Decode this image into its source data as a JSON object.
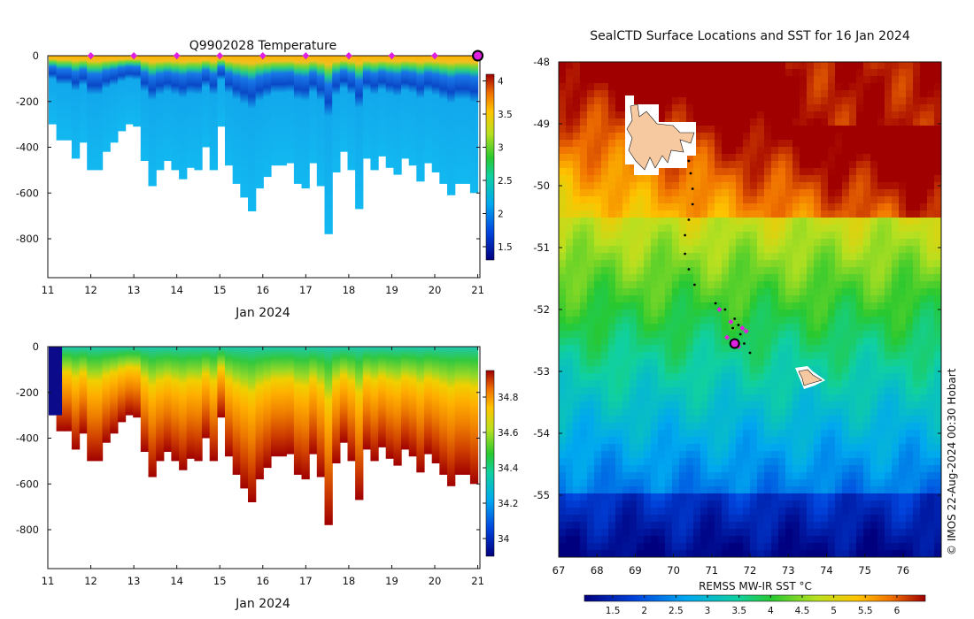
{
  "chart_data": [
    {
      "type": "heatmap",
      "title": "Q9902028  Temperature",
      "xlabel": "Jan 2024",
      "ylabel": "",
      "x_ticks": [
        "11",
        "12",
        "13",
        "14",
        "15",
        "16",
        "17",
        "18",
        "19",
        "20",
        "21"
      ],
      "x_range": [
        11,
        21.05
      ],
      "y_ticks": [
        "0",
        "-200",
        "-400",
        "-600",
        "-800"
      ],
      "y_range": [
        -970,
        0
      ],
      "profile_max_depth_m": [
        300,
        370,
        370,
        450,
        380,
        500,
        500,
        420,
        380,
        330,
        300,
        310,
        460,
        570,
        500,
        460,
        500,
        540,
        490,
        500,
        400,
        500,
        310,
        480,
        560,
        620,
        680,
        580,
        530,
        480,
        480,
        470,
        560,
        580,
        470,
        570,
        780,
        510,
        420,
        500,
        670,
        450,
        500,
        440,
        490,
        520,
        450,
        480,
        550,
        470,
        510,
        560,
        610,
        560,
        560,
        600
      ],
      "surface_positions_day": [
        12,
        13,
        14,
        15,
        16,
        17,
        18,
        19,
        20
      ],
      "current_day": 21,
      "colorbar": {
        "ticks": [
          "1.5",
          "2",
          "2.5",
          "3",
          "3.5",
          "4"
        ],
        "range": [
          1.3,
          4.1
        ]
      }
    },
    {
      "type": "heatmap",
      "title": "",
      "xlabel": "Jan 2024",
      "ylabel": "",
      "x_ticks": [
        "11",
        "12",
        "13",
        "14",
        "15",
        "16",
        "17",
        "18",
        "19",
        "20",
        "21"
      ],
      "x_range": [
        11,
        21.05
      ],
      "y_ticks": [
        "0",
        "-200",
        "-400",
        "-600",
        "-800"
      ],
      "y_range": [
        -970,
        0
      ],
      "profile_max_depth_m": [
        300,
        370,
        370,
        450,
        380,
        500,
        500,
        420,
        380,
        330,
        300,
        310,
        460,
        570,
        500,
        460,
        500,
        540,
        490,
        500,
        400,
        500,
        310,
        480,
        560,
        620,
        680,
        580,
        530,
        480,
        480,
        470,
        560,
        580,
        470,
        570,
        780,
        510,
        420,
        500,
        670,
        450,
        500,
        440,
        490,
        520,
        450,
        480,
        550,
        470,
        510,
        560,
        610,
        560,
        560,
        600
      ],
      "colorbar": {
        "ticks": [
          "34",
          "34.2",
          "34.4",
          "34.6",
          "34.8"
        ],
        "range": [
          33.9,
          34.95
        ]
      }
    },
    {
      "type": "heatmap",
      "title": "SealCTD Surface Locations and SST for 16 Jan 2024",
      "xlabel": "",
      "ylabel": "",
      "x_ticks": [
        "67",
        "68",
        "69",
        "70",
        "71",
        "72",
        "73",
        "74",
        "75",
        "76"
      ],
      "x_range": [
        67,
        77
      ],
      "y_ticks": [
        "-48",
        "-49",
        "-50",
        "-51",
        "-52",
        "-53",
        "-54",
        "-55"
      ],
      "y_range": [
        -56,
        -48
      ],
      "track_points": [
        {
          "lon": 70.4,
          "lat": -49.6
        },
        {
          "lon": 70.45,
          "lat": -49.8
        },
        {
          "lon": 70.5,
          "lat": -50.05
        },
        {
          "lon": 70.5,
          "lat": -50.3
        },
        {
          "lon": 70.4,
          "lat": -50.55
        },
        {
          "lon": 70.3,
          "lat": -50.8
        },
        {
          "lon": 70.3,
          "lat": -51.1
        },
        {
          "lon": 70.4,
          "lat": -51.35
        },
        {
          "lon": 70.55,
          "lat": -51.6
        },
        {
          "lon": 71.1,
          "lat": -51.9
        },
        {
          "lon": 71.35,
          "lat": -52.0
        },
        {
          "lon": 71.6,
          "lat": -52.15
        },
        {
          "lon": 71.7,
          "lat": -52.25
        },
        {
          "lon": 71.55,
          "lat": -52.3
        },
        {
          "lon": 71.75,
          "lat": -52.4
        },
        {
          "lon": 71.6,
          "lat": -52.5
        },
        {
          "lon": 71.85,
          "lat": -52.55
        },
        {
          "lon": 72.0,
          "lat": -52.7
        }
      ],
      "surface_positions": [
        {
          "lon": 71.2,
          "lat": -52.0
        },
        {
          "lon": 71.5,
          "lat": -52.2
        },
        {
          "lon": 71.8,
          "lat": -52.3
        },
        {
          "lon": 71.4,
          "lat": -52.45
        },
        {
          "lon": 71.7,
          "lat": -52.6
        },
        {
          "lon": 71.9,
          "lat": -52.35
        }
      ],
      "current_position": {
        "lon": 71.6,
        "lat": -52.55
      },
      "colorbar_label": "REMSS MW-IR SST °C",
      "colorbar": {
        "ticks": [
          "1.5",
          "2",
          "2.5",
          "3",
          "3.5",
          "4",
          "4.5",
          "5",
          "5.5",
          "6"
        ],
        "range": [
          1.05,
          6.45
        ]
      }
    }
  ],
  "credit": "© IMOS 22-Aug-2024 00:30 Hobart",
  "colors": {
    "surface_marker": "#e020e0",
    "current_marker": "#e020e0",
    "track": "#000000",
    "land": "#f7c9a0"
  }
}
